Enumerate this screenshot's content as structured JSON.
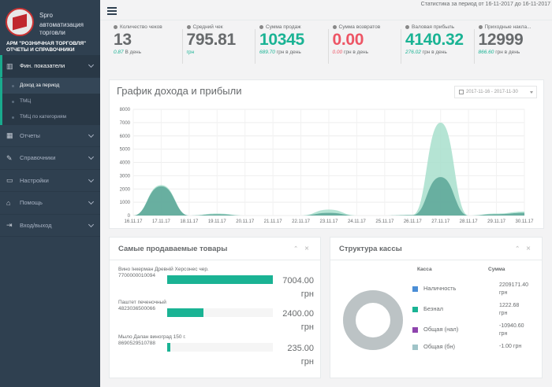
{
  "sidebar": {
    "brand": "Spro",
    "brand_sub": "автоматизация торговли",
    "arm": "АРМ \"РОЗНИЧНАЯ ТОРГОВЛЯ\" ОТЧЕТЫ И СПРАВОЧНИКИ",
    "items": [
      {
        "label": "Фин. показатели",
        "icon": "bar-chart-icon"
      },
      {
        "label": "Отчеты",
        "icon": "table-icon"
      },
      {
        "label": "Справочники",
        "icon": "edit-icon"
      },
      {
        "label": "Настройки",
        "icon": "monitor-icon"
      },
      {
        "label": "Помощь",
        "icon": "home-icon"
      },
      {
        "label": "Вход/выход",
        "icon": "signout-icon"
      }
    ],
    "subitems": [
      "Доход за период",
      "ТМЦ",
      "ТМЦ по категориям"
    ]
  },
  "topbar": {
    "period": "Статистика за период от 16-11-2017 до 16-11-2017"
  },
  "kpis": [
    {
      "label": "Количество чеков",
      "icon": "user-icon",
      "value": "13",
      "sub_val": "0.87",
      "sub_unit": "В день",
      "color": "gray"
    },
    {
      "label": "Средний чек",
      "icon": "clock-icon",
      "value": "795.81",
      "sub_val": "",
      "sub_unit": "грн",
      "color": "gray"
    },
    {
      "label": "Сумма продаж",
      "icon": "user-icon",
      "value": "10345",
      "sub_val": "689.70",
      "sub_unit": "грн в день",
      "color": "teal"
    },
    {
      "label": "Сумма возвратов",
      "icon": "user-icon",
      "value": "0.00",
      "sub_val": "0.00",
      "sub_unit": "грн в день",
      "color": "red"
    },
    {
      "label": "Валовая прибыль",
      "icon": "user-icon",
      "value": "4140.32",
      "sub_val": "276.02",
      "sub_unit": "грн в день",
      "color": "teal"
    },
    {
      "label": "Приходные накла...",
      "icon": "user-icon",
      "value": "12999",
      "sub_val": "866.60",
      "sub_unit": "грн в день",
      "color": "gray"
    }
  ],
  "chart_panel": {
    "title": "График дохода и прибыли",
    "date_range": "2017-11-16 - 2017-11-30"
  },
  "chart_data": {
    "type": "area",
    "categories": [
      "16.11.17",
      "17.11.17",
      "18.11.17",
      "19.11.17",
      "20.11.17",
      "21.11.17",
      "22.11.17",
      "23.11.17",
      "24.11.17",
      "25.11.17",
      "26.11.17",
      "27.11.17",
      "28.11.17",
      "29.11.17",
      "30.11.17"
    ],
    "series": [
      {
        "values": [
          0,
          2300,
          0,
          150,
          0,
          0,
          0,
          450,
          0,
          0,
          50,
          7000,
          0,
          150,
          300
        ],
        "color": "#a8dfcd"
      },
      {
        "values": [
          0,
          2200,
          0,
          100,
          0,
          0,
          0,
          200,
          0,
          0,
          30,
          2900,
          0,
          100,
          200
        ],
        "color": "#5fa89a"
      }
    ],
    "ylim": [
      0,
      8000
    ],
    "yticks": [
      0,
      1000,
      2000,
      3000,
      4000,
      5000,
      6000,
      7000,
      8000
    ],
    "grid": true
  },
  "top_products": {
    "title": "Самые продаваемые товары",
    "items": [
      {
        "name": "Вино Інкерман Древній Херсонес чер.",
        "code": "7700000010094",
        "value": "7004.00",
        "unit": "грн",
        "fill": 1.0
      },
      {
        "name": "Паштет печеночный",
        "code": "4823036500066",
        "value": "2400.00",
        "unit": "грн",
        "fill": 0.34
      },
      {
        "name": "Мыло Далан виноград 150 г.",
        "code": "8690529510788",
        "value": "235.00",
        "unit": "грн",
        "fill": 0.033
      }
    ]
  },
  "cash_structure": {
    "title": "Структура кассы",
    "col_kassa": "Касса",
    "col_sum": "Сумма",
    "rows": [
      {
        "label": "Наличность",
        "sum1": "2209171.40",
        "sum2": "грн",
        "color": "#4a8ed6"
      },
      {
        "label": "Безнал",
        "sum1": "1222.68",
        "sum2": "грн",
        "color": "#1ab394"
      },
      {
        "label": "Общая (нал)",
        "sum1": "-10940.60",
        "sum2": "грн",
        "color": "#8e44ad"
      },
      {
        "label": "Общая (бн)",
        "sum1": "-1.00 грн",
        "sum2": "",
        "color": "#a0c4c8"
      }
    ]
  }
}
